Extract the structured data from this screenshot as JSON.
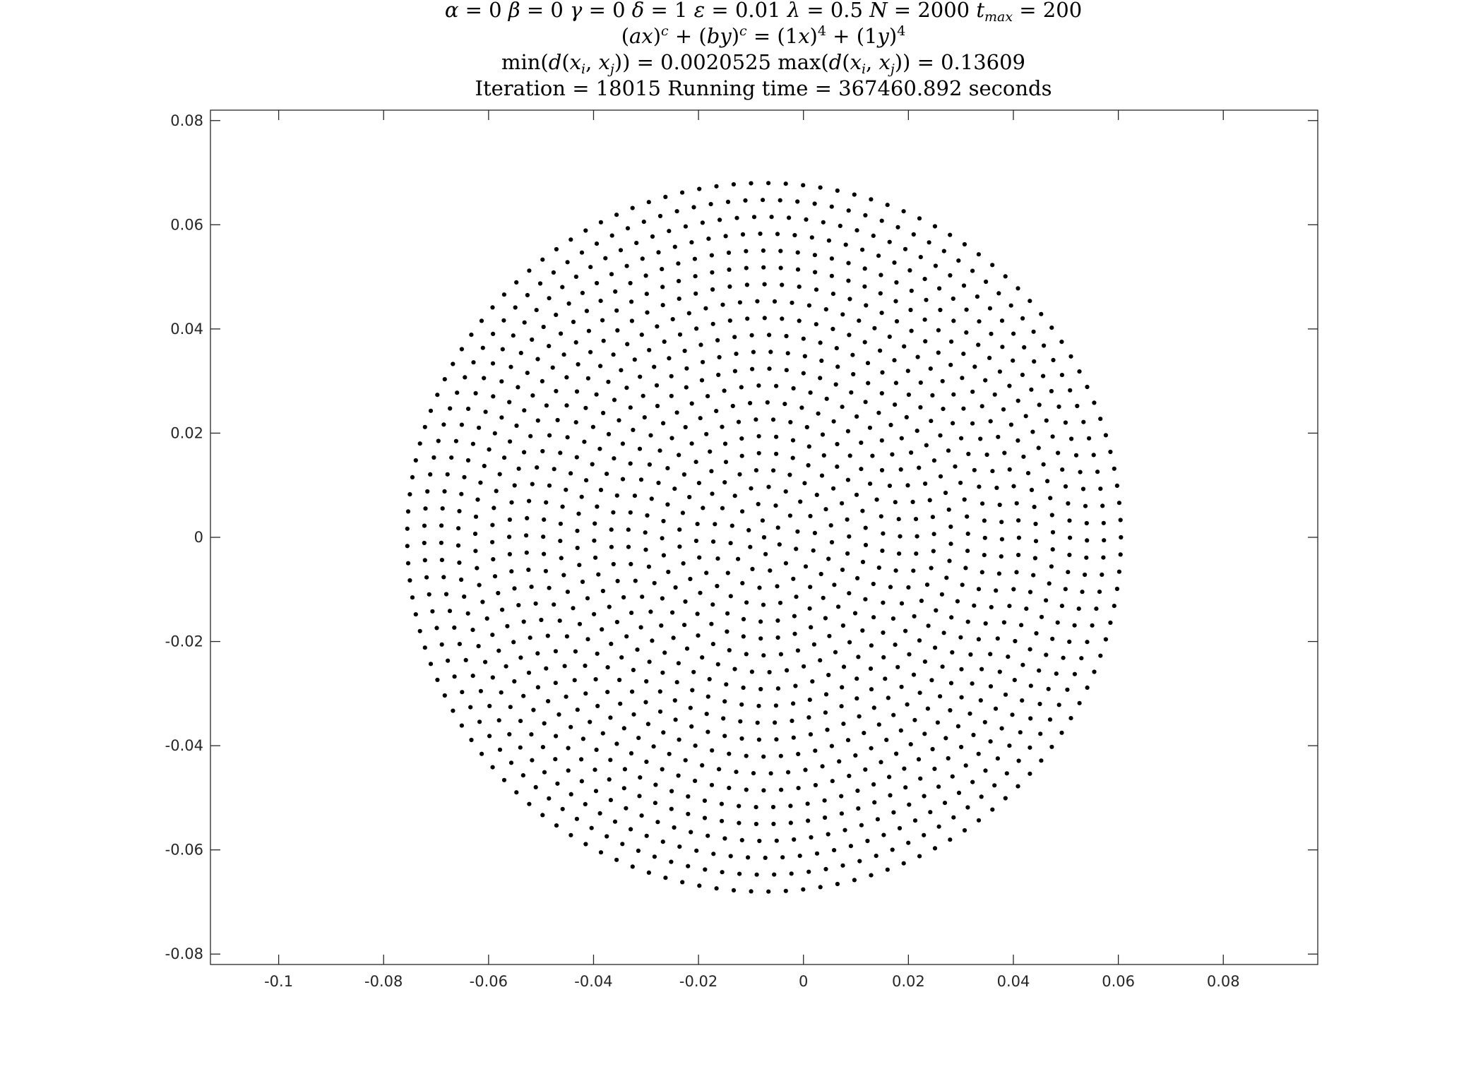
{
  "chart_data": {
    "type": "scatter",
    "title_lines": [
      "α = 0    β = 0    γ = 0    δ = 1    ε = 0.01    λ = 0.5    N = 2000    t_max = 200",
      "(ax)^c + (by)^c = (1x)^4 + (1y)^4",
      "min(d(x_i, x_j)) = 0.0020525    max(d(x_i, x_j)) = 0.13609",
      "Iteration = 18015    Running time = 367460.892 seconds"
    ],
    "xlabel": "",
    "ylabel": "",
    "xlim": [
      -0.113,
      0.098
    ],
    "ylim": [
      -0.082,
      0.082
    ],
    "xticks": [
      -0.1,
      -0.08,
      -0.06,
      -0.04,
      -0.02,
      0,
      0.02,
      0.04,
      0.06,
      0.08
    ],
    "xtick_labels": [
      "-0.1",
      "-0.08",
      "-0.06",
      "-0.04",
      "-0.02",
      "0",
      "0.02",
      "0.04",
      "0.06",
      "0.08"
    ],
    "yticks": [
      -0.08,
      -0.06,
      -0.04,
      -0.02,
      0,
      0.02,
      0.04,
      0.06,
      0.08
    ],
    "ytick_labels": [
      "-0.08",
      "-0.06",
      "-0.04",
      "-0.02",
      "0",
      "0.02",
      "0.04",
      "0.06",
      "0.08"
    ],
    "grid": false,
    "legend": "none",
    "marker_color": "#000000",
    "point_cloud": {
      "shape": "disk",
      "center_x": -0.0075,
      "center_y": 0.0,
      "radius": 0.068,
      "spacing": 0.0033,
      "count": 1500
    }
  }
}
